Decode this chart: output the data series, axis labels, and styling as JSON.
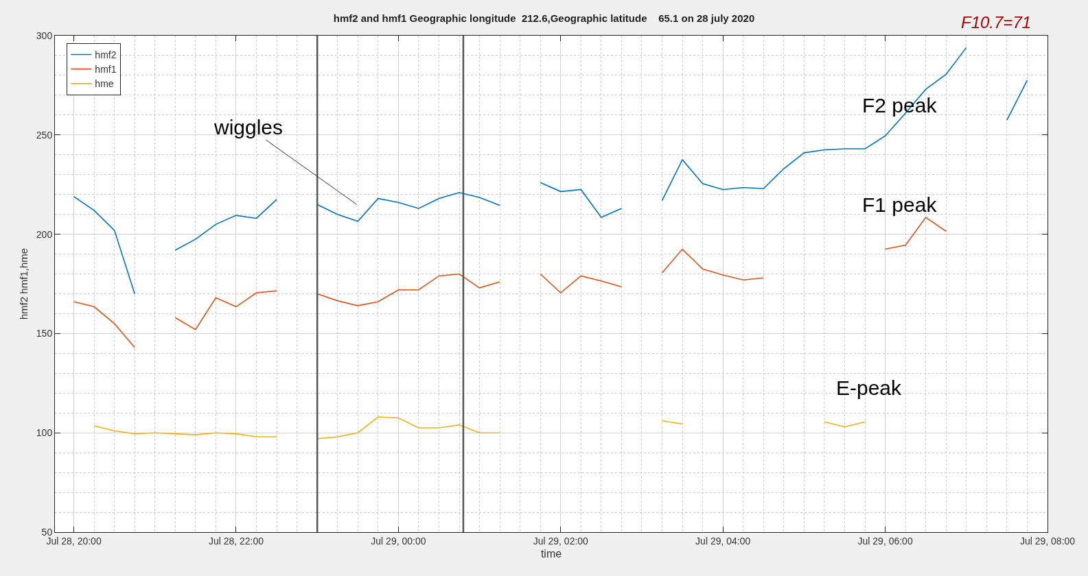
{
  "chart_data": {
    "type": "line",
    "title": "hmf2 and hmf1 Geographic longitude  212.6,Geographic latitude    65.1 on 28 july 2020",
    "xlabel": "time",
    "ylabel": "hmf2 hmf1,hme",
    "x": [
      "2020-07-28T20:00",
      "2020-07-28T20:15",
      "2020-07-28T20:30",
      "2020-07-28T20:45",
      "2020-07-28T21:00",
      "2020-07-28T21:15",
      "2020-07-28T21:30",
      "2020-07-28T21:45",
      "2020-07-28T22:00",
      "2020-07-28T22:15",
      "2020-07-28T22:30",
      "2020-07-28T22:45",
      "2020-07-28T23:00",
      "2020-07-28T23:15",
      "2020-07-28T23:30",
      "2020-07-28T23:45",
      "2020-07-29T00:00",
      "2020-07-29T00:15",
      "2020-07-29T00:30",
      "2020-07-29T00:45",
      "2020-07-29T01:00",
      "2020-07-29T01:15",
      "2020-07-29T01:30",
      "2020-07-29T01:45",
      "2020-07-29T02:00",
      "2020-07-29T02:15",
      "2020-07-29T02:30",
      "2020-07-29T02:45",
      "2020-07-29T03:00",
      "2020-07-29T03:15",
      "2020-07-29T03:30",
      "2020-07-29T03:45",
      "2020-07-29T04:00",
      "2020-07-29T04:15",
      "2020-07-29T04:30",
      "2020-07-29T04:45",
      "2020-07-29T05:00",
      "2020-07-29T05:15",
      "2020-07-29T05:30",
      "2020-07-29T05:45",
      "2020-07-29T06:00",
      "2020-07-29T06:15",
      "2020-07-29T06:30",
      "2020-07-29T06:45",
      "2020-07-29T07:00",
      "2020-07-29T07:15",
      "2020-07-29T07:30",
      "2020-07-29T07:45"
    ],
    "series": [
      {
        "name": "hmf2",
        "color": "#0072bd",
        "values": [
          219,
          212,
          202,
          170,
          null,
          192,
          197.5,
          205,
          209.5,
          208,
          217.5,
          null,
          215,
          210,
          206.5,
          218,
          216,
          213,
          218,
          221,
          218.5,
          214.5,
          null,
          226,
          221.5,
          222.5,
          208.5,
          213,
          null,
          217,
          237.5,
          225.5,
          222.5,
          223.5,
          223,
          233,
          241,
          242.5,
          243,
          243,
          249.5,
          261,
          273,
          280.5,
          294,
          null,
          257.5,
          277.5
        ]
      },
      {
        "name": "hmf1",
        "color": "#d95319",
        "values": [
          166,
          163.5,
          155,
          143,
          null,
          158,
          152,
          168,
          163.5,
          170.5,
          171.5,
          null,
          170,
          166.5,
          164,
          166,
          172,
          172,
          179,
          180,
          173,
          176,
          null,
          180,
          170.5,
          179,
          176.5,
          173.5,
          null,
          180.5,
          192.5,
          182.5,
          179.5,
          177,
          178,
          null,
          null,
          null,
          null,
          null,
          192.5,
          194.5,
          208.5,
          201.5,
          null,
          null,
          null,
          null
        ]
      },
      {
        "name": "hme",
        "color": "#edb120",
        "values": [
          null,
          103.5,
          101,
          99.5,
          100,
          99.5,
          99,
          100,
          99.5,
          98,
          98,
          null,
          97,
          98,
          100,
          108,
          107.5,
          102.5,
          102.5,
          104,
          100,
          100,
          null,
          null,
          null,
          null,
          null,
          null,
          null,
          106,
          104.5,
          null,
          null,
          null,
          null,
          null,
          null,
          105.5,
          103,
          105.5,
          null,
          null,
          null,
          null,
          null,
          null,
          null,
          null
        ]
      }
    ],
    "xlim": [
      "2020-07-28T19:46",
      "2020-07-29T08:00"
    ],
    "xticks": [
      {
        "value": "2020-07-28T20:00",
        "label": "Jul 28, 20:00"
      },
      {
        "value": "2020-07-28T22:00",
        "label": "Jul 28, 22:00"
      },
      {
        "value": "2020-07-29T00:00",
        "label": "Jul 29, 00:00"
      },
      {
        "value": "2020-07-29T02:00",
        "label": "Jul 29, 02:00"
      },
      {
        "value": "2020-07-29T04:00",
        "label": "Jul 29, 04:00"
      },
      {
        "value": "2020-07-29T06:00",
        "label": "Jul 29, 06:00"
      },
      {
        "value": "2020-07-29T08:00",
        "label": "Jul 29, 08:00"
      }
    ],
    "ylim": [
      50,
      300
    ],
    "yticks": [
      50,
      100,
      150,
      200,
      250,
      300
    ],
    "ref_lines": [
      {
        "axis": "x",
        "value": "2020-07-28T23:00",
        "color": "#555555"
      },
      {
        "axis": "x",
        "value": "2020-07-29T00:48",
        "color": "#555555"
      }
    ],
    "annotations": [
      "wiggles",
      "F2 peak",
      "F1 peak",
      "E-peak",
      "F10.7=71"
    ],
    "grid": true,
    "legend": "top left",
    "line_style": "solid",
    "marker": "none"
  }
}
